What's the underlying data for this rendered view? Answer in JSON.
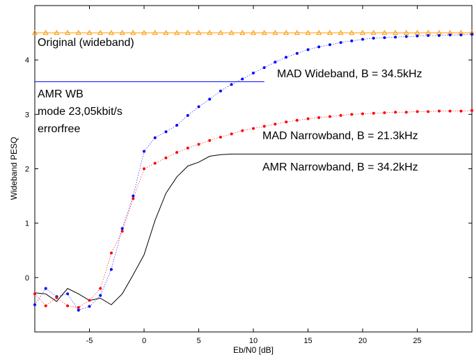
{
  "chart_data": {
    "type": "line",
    "xlabel": "Eb/N0 [dB]",
    "ylabel": "Wideband PESQ",
    "xlim": [
      -10,
      30
    ],
    "ylim": [
      -1.0,
      5.0
    ],
    "xticks": [
      -5,
      0,
      5,
      10,
      15,
      20,
      25
    ],
    "yticks": [
      0,
      1,
      2,
      3,
      4
    ],
    "grid": false,
    "series": [
      {
        "name": "Original (wideband)",
        "color": "#ff9900",
        "marker": "triangle",
        "x": [
          -10,
          -9,
          -8,
          -7,
          -6,
          -5,
          -4,
          -3,
          -2,
          -1,
          0,
          1,
          2,
          3,
          4,
          5,
          6,
          7,
          8,
          9,
          10,
          11,
          12,
          13,
          14,
          15,
          16,
          17,
          18,
          19,
          20,
          21,
          22,
          23,
          24,
          25,
          26,
          27,
          28,
          29,
          30
        ],
        "y": [
          4.5,
          4.5,
          4.5,
          4.5,
          4.5,
          4.5,
          4.5,
          4.5,
          4.5,
          4.5,
          4.5,
          4.5,
          4.5,
          4.5,
          4.5,
          4.5,
          4.5,
          4.5,
          4.5,
          4.5,
          4.5,
          4.5,
          4.5,
          4.5,
          4.5,
          4.5,
          4.5,
          4.5,
          4.5,
          4.5,
          4.5,
          4.5,
          4.5,
          4.5,
          4.5,
          4.5,
          4.5,
          4.5,
          4.5,
          4.5,
          4.5
        ]
      },
      {
        "name": "AMR WB mode 23,05kbit/s errorfree",
        "color": "#0000ff",
        "marker": "none",
        "x": [
          -10,
          11
        ],
        "y": [
          3.6,
          3.6
        ]
      },
      {
        "name": "MAD Wideband, B = 34.5kHz",
        "color": "#0000ff",
        "marker": "dot",
        "x": [
          -10,
          -9,
          -8,
          -7,
          -6,
          -5,
          -4,
          -3,
          -2,
          -1,
          0,
          1,
          2,
          3,
          4,
          5,
          6,
          7,
          8,
          9,
          10,
          11,
          12,
          13,
          14,
          15,
          16,
          17,
          18,
          19,
          20,
          21,
          22,
          23,
          24,
          25,
          26,
          27,
          28,
          29,
          30
        ],
        "y": [
          -0.5,
          -0.2,
          -0.35,
          -0.3,
          -0.6,
          -0.53,
          -0.33,
          0.15,
          0.9,
          1.5,
          2.32,
          2.57,
          2.68,
          2.8,
          2.98,
          3.14,
          3.28,
          3.43,
          3.55,
          3.65,
          3.76,
          3.86,
          3.96,
          4.05,
          4.12,
          4.19,
          4.24,
          4.28,
          4.32,
          4.35,
          4.38,
          4.4,
          4.41,
          4.42,
          4.43,
          4.44,
          4.45,
          4.45,
          4.46,
          4.46,
          4.47
        ]
      },
      {
        "name": "MAD Narrowband, B = 21.3kHz",
        "color": "#ff0000",
        "marker": "dot",
        "x": [
          -10,
          -9,
          -8,
          -7,
          -6,
          -5,
          -4,
          -3,
          -2,
          -1,
          0,
          1,
          2,
          3,
          4,
          5,
          6,
          7,
          8,
          9,
          10,
          11,
          12,
          13,
          14,
          15,
          16,
          17,
          18,
          19,
          20,
          21,
          22,
          23,
          24,
          25,
          26,
          27,
          28,
          29,
          30
        ],
        "y": [
          -0.3,
          -0.52,
          -0.37,
          -0.52,
          -0.55,
          -0.42,
          -0.2,
          0.45,
          0.85,
          1.45,
          2.0,
          2.1,
          2.2,
          2.3,
          2.38,
          2.45,
          2.52,
          2.58,
          2.64,
          2.7,
          2.74,
          2.78,
          2.82,
          2.86,
          2.89,
          2.92,
          2.94,
          2.96,
          2.98,
          3.0,
          3.01,
          3.02,
          3.03,
          3.04,
          3.04,
          3.05,
          3.05,
          3.06,
          3.06,
          3.06,
          3.07
        ]
      },
      {
        "name": "AMR Narrowband, B = 34.2kHz",
        "color": "#000000",
        "marker": "none",
        "x": [
          -10,
          -9,
          -8,
          -7,
          -6,
          -5,
          -4,
          -3,
          -2,
          -1,
          0,
          1,
          2,
          3,
          4,
          5,
          6,
          7,
          8,
          9,
          10,
          15,
          20,
          25,
          30
        ],
        "y": [
          -0.28,
          -0.3,
          -0.44,
          -0.2,
          -0.3,
          -0.42,
          -0.38,
          -0.5,
          -0.3,
          0.05,
          0.42,
          1.05,
          1.55,
          1.85,
          2.05,
          2.12,
          2.23,
          2.26,
          2.27,
          2.27,
          2.27,
          2.27,
          2.27,
          2.27,
          2.27
        ]
      }
    ],
    "annotations": {
      "original": "Original (wideband)",
      "amr_wb_1": "AMR WB",
      "amr_wb_2": "mode 23,05kbit/s",
      "amr_wb_3": "errorfree",
      "mad_wb": "MAD Wideband, B = 34.5kHz",
      "mad_nb": "MAD Narrowband, B = 21.3kHz",
      "amr_nb": "AMR Narrowband, B = 34.2kHz"
    }
  }
}
